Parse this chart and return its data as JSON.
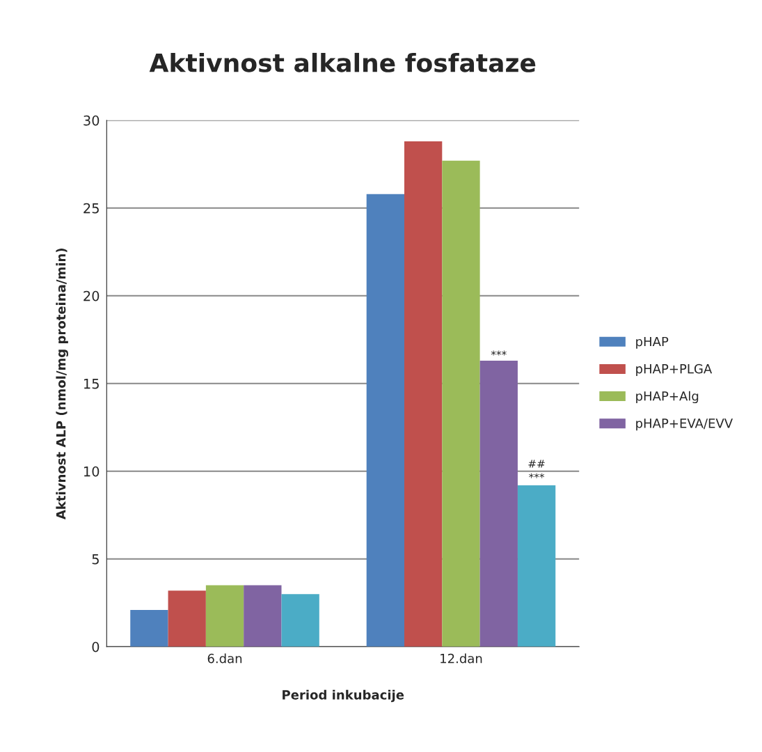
{
  "chart_data": {
    "type": "bar",
    "title": "Aktivnost alkalne fosfataze",
    "xlabel": "Period inkubacije",
    "ylabel": "Aktivnost ALP (nmol/mg proteina/min)",
    "categories": [
      "6.dan",
      "12.dan"
    ],
    "series": [
      {
        "name": "pHAP",
        "color": "#4f81bd",
        "values": [
          2.1,
          25.8
        ]
      },
      {
        "name": "pHAP+PLGA",
        "color": "#c0504d",
        "values": [
          3.2,
          28.8
        ]
      },
      {
        "name": "pHAP+Alg",
        "color": "#9bbb59",
        "values": [
          3.5,
          27.7
        ]
      },
      {
        "name": "pHAP+EVA/EVV",
        "color": "#8064a2",
        "values": [
          3.5,
          16.3
        ]
      },
      {
        "color": "#4bacc6",
        "values": [
          3.0,
          9.2
        ]
      }
    ],
    "ylim": [
      0,
      30
    ],
    "yticks": [
      0,
      5,
      10,
      15,
      20,
      25,
      30
    ],
    "grid": "y",
    "legend": "right",
    "annotations": [
      "***",
      "##",
      "***"
    ]
  }
}
